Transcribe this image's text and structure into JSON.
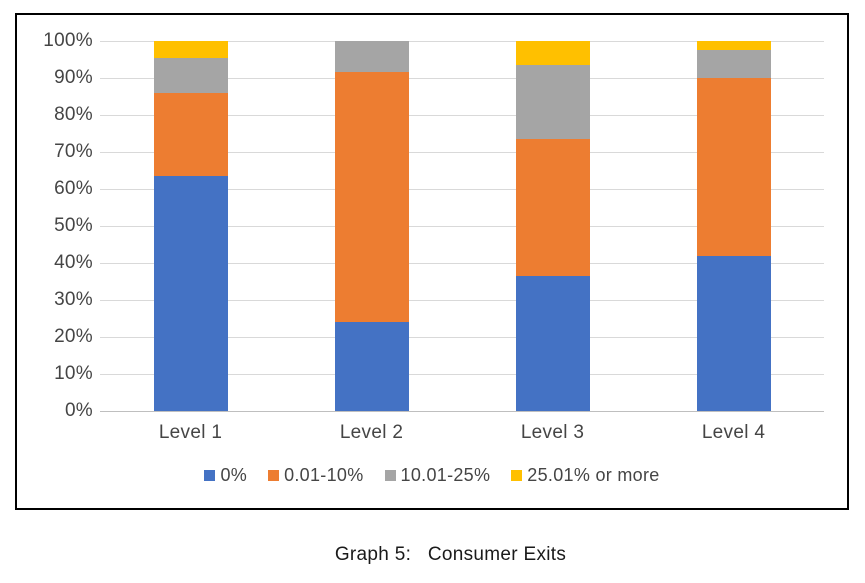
{
  "caption": "Graph 5:   Consumer Exits",
  "colors": {
    "background": "#FFFFFF",
    "frame_border": "#000000",
    "gridline": "#D9D9D9",
    "axis_line": "#BFBFBF",
    "tick_text": "#454545",
    "caption_text": "#1A1A1A"
  },
  "chart_data": {
    "type": "bar",
    "stacked": true,
    "stacked_100_percent": true,
    "title": "",
    "xlabel": "",
    "ylabel": "",
    "grid": true,
    "legend_position": "bottom",
    "categories": [
      "Level 1",
      "Level 2",
      "Level 3",
      "Level 4"
    ],
    "series": [
      {
        "name": "0%",
        "color": "#4472C4",
        "values": [
          63.5,
          24,
          36.5,
          42
        ]
      },
      {
        "name": "0.01-10%",
        "color": "#ED7D31",
        "values": [
          22.5,
          67.5,
          37,
          48
        ]
      },
      {
        "name": "10.01-25%",
        "color": "#A5A5A5",
        "values": [
          9.5,
          8.5,
          20,
          7.5
        ]
      },
      {
        "name": "25.01% or more",
        "color": "#FFC000",
        "values": [
          4.5,
          0,
          6.5,
          2.5
        ]
      }
    ],
    "y_axis": {
      "min": 0,
      "max": 100,
      "step": 10,
      "tick_labels": [
        "0%",
        "10%",
        "20%",
        "30%",
        "40%",
        "50%",
        "60%",
        "70%",
        "80%",
        "90%",
        "100%"
      ]
    }
  }
}
